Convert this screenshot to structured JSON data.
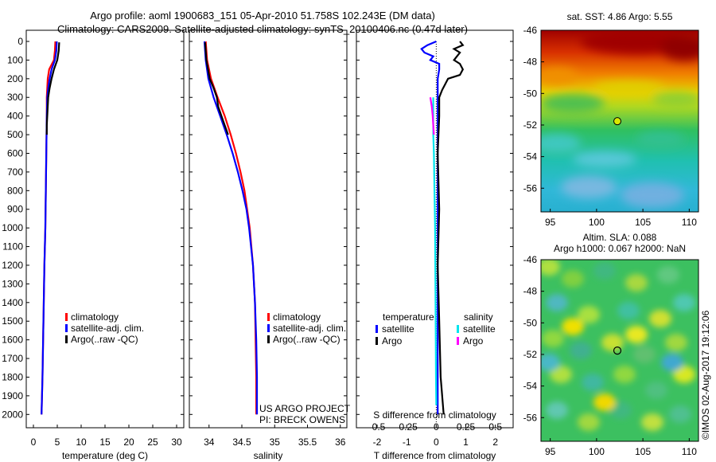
{
  "title_line1": "Argo profile: aoml 1900683_151 05-Apr-2010 51.758S 102.243E (DM data)",
  "title_line2": "Climatology: CARS2009. Satellite-adjusted climatology: synTS_20100406.nc (0.47d later)",
  "depth_ticks": [
    "0",
    "100",
    "200",
    "300",
    "400",
    "500",
    "600",
    "700",
    "800",
    "900",
    "1000",
    "1100",
    "1200",
    "1300",
    "1400",
    "1500",
    "1600",
    "1700",
    "1800",
    "1900",
    "2000"
  ],
  "colors": {
    "climatology": "#ff0000",
    "satellite": "#0000ff",
    "argo": "#000000",
    "sal_satellite": "#00e5ee",
    "sal_argo": "#ff00ff"
  },
  "legend": {
    "climatology": "climatology",
    "satellite_adj": "satellite-adj. clim.",
    "argo": "Argo(..raw -QC)",
    "temperature_hdr": "temperature",
    "salinity_hdr": "salinity",
    "satellite": "satellite",
    "argo_short": "Argo"
  },
  "credits": {
    "line1": "US ARGO PROJECT",
    "line2": "PI: BRECK OWENS"
  },
  "watermark": "©IMOS 02-Aug-2017 19:12:06",
  "chart_data": [
    {
      "type": "line",
      "xlabel": "temperature (deg C)",
      "ylabel": "",
      "xlim": [
        -1.5,
        31.5
      ],
      "ylim": [
        2050,
        0
      ],
      "xticks": [
        "0",
        "5",
        "10",
        "15",
        "20",
        "25",
        "30"
      ],
      "xtick_values": [
        0,
        5,
        10,
        15,
        20,
        25,
        30
      ],
      "series": [
        {
          "name": "climatology",
          "depth": [
            0,
            50,
            100,
            150,
            200,
            250,
            300,
            400,
            600,
            800,
            1000,
            1200,
            1500,
            1800,
            2000
          ],
          "values": [
            4.6,
            4.5,
            4.3,
            3.3,
            3.0,
            2.9,
            2.8,
            2.8,
            2.7,
            2.6,
            2.5,
            2.3,
            2.1,
            1.9,
            1.7
          ]
        },
        {
          "name": "satellite-adj. clim.",
          "depth": [
            0,
            50,
            100,
            150,
            200,
            250,
            300,
            400,
            600,
            800,
            1000,
            1200,
            1500,
            1800,
            2000
          ],
          "values": [
            4.9,
            4.8,
            4.5,
            3.8,
            3.4,
            3.1,
            2.9,
            2.8,
            2.7,
            2.6,
            2.5,
            2.3,
            2.1,
            1.9,
            1.7
          ]
        },
        {
          "name": "Argo(..raw -QC)",
          "depth": [
            5,
            50,
            100,
            150,
            200,
            250,
            300,
            350,
            400,
            450,
            500
          ],
          "values": [
            5.4,
            5.3,
            5.0,
            4.3,
            3.8,
            3.4,
            3.1,
            3.0,
            2.9,
            2.8,
            2.8
          ]
        }
      ]
    },
    {
      "type": "line",
      "xlabel": "salinity",
      "ylabel": "",
      "xlim": [
        33.7,
        36.1
      ],
      "ylim": [
        2050,
        0
      ],
      "xticks": [
        "34",
        "34.5",
        "35",
        "35.5",
        "36"
      ],
      "xtick_values": [
        34,
        34.5,
        35,
        35.5,
        36
      ],
      "series": [
        {
          "name": "climatology",
          "depth": [
            0,
            100,
            200,
            300,
            400,
            500,
            600,
            700,
            800,
            900,
            1000,
            1200,
            1400,
            1600,
            1800,
            2000
          ],
          "values": [
            33.95,
            33.97,
            34.03,
            34.13,
            34.24,
            34.33,
            34.41,
            34.48,
            34.54,
            34.58,
            34.62,
            34.67,
            34.7,
            34.71,
            34.72,
            34.72
          ]
        },
        {
          "name": "satellite-adj. clim.",
          "depth": [
            0,
            100,
            200,
            300,
            400,
            500,
            600,
            700,
            800,
            900,
            1000,
            1200,
            1400,
            1600,
            1800,
            2000
          ],
          "values": [
            33.93,
            33.95,
            33.99,
            34.07,
            34.17,
            34.27,
            34.36,
            34.44,
            34.51,
            34.57,
            34.61,
            34.67,
            34.7,
            34.72,
            34.73,
            34.73
          ]
        },
        {
          "name": "Argo(..raw -QC)",
          "depth": [
            5,
            100,
            200,
            250,
            300,
            350,
            400,
            450,
            500
          ],
          "values": [
            33.94,
            33.96,
            34.01,
            34.07,
            34.12,
            34.14,
            34.19,
            34.24,
            34.29
          ]
        }
      ]
    },
    {
      "type": "line",
      "xlabel": "T difference from climatology",
      "title": "S difference from climatology",
      "ylabel": "",
      "xlim": [
        -2.7,
        2.6
      ],
      "ylim": [
        2050,
        0
      ],
      "xticks": [
        "-2",
        "-1",
        "0",
        "1",
        "2"
      ],
      "xtick_values": [
        -2,
        -1,
        0,
        1,
        2
      ],
      "top_xticks": [
        "-0.5",
        "-0.25",
        "0",
        "0.25",
        "0.5"
      ],
      "top_xtick_values": [
        -0.5,
        -0.25,
        0,
        0.25,
        0.5
      ],
      "series": [
        {
          "name": "temperature satellite",
          "depth": [
            0,
            20,
            40,
            60,
            80,
            100,
            120,
            150,
            200,
            300,
            500,
            800,
            1200,
            1600,
            2000
          ],
          "values": [
            0.0,
            -0.3,
            -0.5,
            -0.4,
            -0.1,
            -0.2,
            0.1,
            0.1,
            0.05,
            0.05,
            0.05,
            0.05,
            0.05,
            0.05,
            0.05
          ]
        },
        {
          "name": "temperature Argo",
          "depth": [
            0,
            20,
            40,
            60,
            80,
            100,
            120,
            150,
            180,
            200,
            230,
            260,
            300,
            400,
            600,
            900,
            1200,
            1500,
            1800,
            2000
          ],
          "values": [
            0.8,
            0.9,
            0.6,
            0.8,
            0.7,
            0.6,
            0.8,
            0.9,
            0.8,
            0.4,
            0.3,
            0.2,
            0.1,
            0.1,
            0.05,
            0.1,
            0.05,
            0.1,
            0.15,
            0.25
          ]
        },
        {
          "name": "salinity satellite",
          "depth": [
            300,
            400,
            500,
            600,
            800,
            1000,
            1200,
            1500,
            1800,
            1950
          ],
          "values": [
            -0.1,
            -0.1,
            -0.1,
            -0.08,
            -0.06,
            -0.04,
            -0.03,
            -0.02,
            -0.01,
            0.0
          ]
        },
        {
          "name": "salinity Argo",
          "depth": [
            300,
            350,
            400,
            450,
            500
          ],
          "values": [
            -0.2,
            -0.15,
            -0.12,
            -0.1,
            -0.08
          ]
        }
      ]
    },
    {
      "type": "heatmap",
      "title": "sat. SST: 4.86 Argo: 5.55",
      "xlim": [
        94,
        111
      ],
      "ylim": [
        -57.5,
        -46
      ],
      "xticks": [
        "95",
        "100",
        "105",
        "110"
      ],
      "xtick_values": [
        95,
        100,
        105,
        110
      ],
      "yticks": [
        "-46",
        "-48",
        "-50",
        "-52",
        "-54",
        "-56"
      ],
      "ytick_values": [
        -46,
        -48,
        -50,
        -52,
        -54,
        -56
      ],
      "marker": {
        "lon": 102.243,
        "lat": -51.758
      }
    },
    {
      "type": "heatmap",
      "title": "Altim. SLA: 0.088",
      "subtitle": "Argo h1000: 0.067 h2000: NaN",
      "xlim": [
        94,
        111
      ],
      "ylim": [
        -57.5,
        -46
      ],
      "xticks": [
        "95",
        "100",
        "105",
        "110"
      ],
      "xtick_values": [
        95,
        100,
        105,
        110
      ],
      "yticks": [
        "-46",
        "-48",
        "-50",
        "-52",
        "-54",
        "-56"
      ],
      "ytick_values": [
        -46,
        -48,
        -50,
        -52,
        -54,
        -56
      ],
      "marker": {
        "lon": 102.243,
        "lat": -51.758
      }
    }
  ]
}
